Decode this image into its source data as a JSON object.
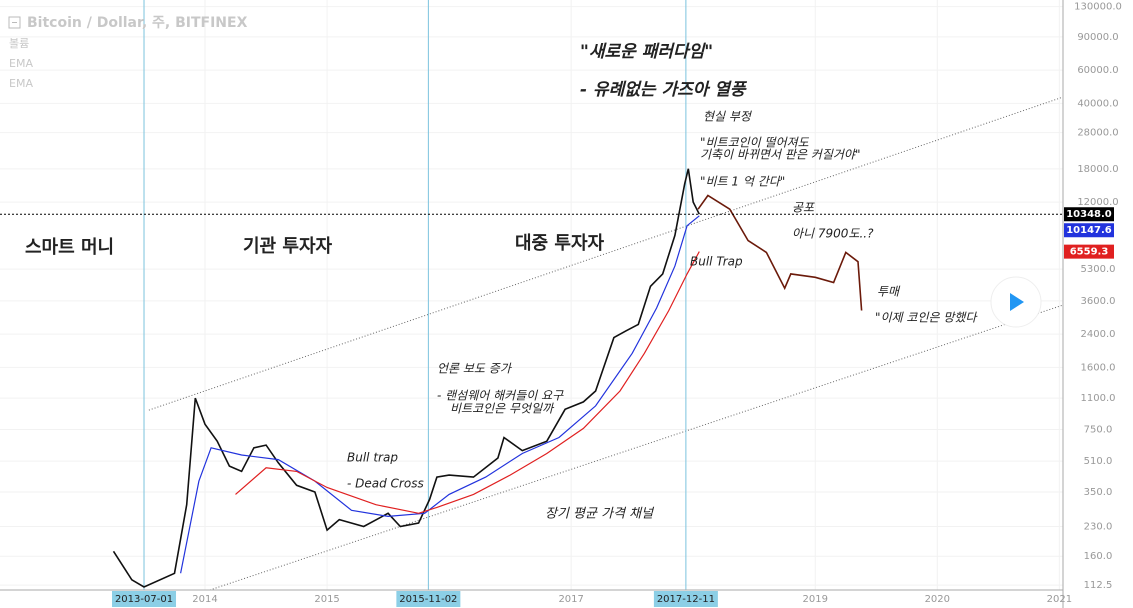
{
  "chart_data": {
    "type": "line",
    "title": "Bitcoin / Dollar, 주, BITFINEX",
    "volume_label": "볼륨",
    "log_scale": true,
    "xlim": [
      2012.32,
      2021.03
    ],
    "ylim": [
      106,
      141000
    ],
    "xticks": [
      2014,
      2015,
      2017,
      2019,
      2020,
      2021
    ],
    "yticks": [
      112.5,
      {
        "value": 160,
        "label": "160.0"
      },
      {
        "value": 230,
        "label": "230.0"
      },
      {
        "value": 350,
        "label": "350.0"
      },
      {
        "value": 510,
        "label": "510.0"
      },
      {
        "value": 750,
        "label": "750.0"
      },
      {
        "value": 1100,
        "label": "1100.0"
      },
      {
        "value": 1600,
        "label": "1600.0"
      },
      {
        "value": 2400,
        "label": "2400.0"
      },
      {
        "value": 3600,
        "label": "3600.0"
      },
      {
        "value": 5300,
        "label": "5300.0"
      },
      {
        "value": 12000,
        "label": "12000.0"
      },
      {
        "value": 18000,
        "label": "18000.0"
      },
      {
        "value": 28000,
        "label": "28000.0"
      },
      {
        "value": 40000,
        "label": "40000.0"
      },
      {
        "value": 60000,
        "label": "60000.0"
      },
      {
        "value": 90000,
        "label": "90000.0"
      },
      {
        "value": 130000,
        "label": "130000.0"
      }
    ],
    "markers": [
      {
        "value": 2013.5,
        "label": "2013-07-01"
      },
      {
        "value": 2015.83,
        "label": "2015-11-02"
      },
      {
        "value": 2017.94,
        "label": "2017-12-11"
      }
    ],
    "series": [
      {
        "color": "#111111",
        "x": [
          2013.25,
          2013.4,
          2013.5,
          2013.75,
          2013.85,
          2013.92,
          2014.0,
          2014.1,
          2014.2,
          2014.3,
          2014.4,
          2014.5,
          2014.6,
          2014.75,
          2014.9,
          2015.0,
          2015.1,
          2015.3,
          2015.5,
          2015.6,
          2015.75,
          2015.84,
          2015.9,
          2016.0,
          2016.2,
          2016.4,
          2016.45,
          2016.6,
          2016.8,
          2016.95,
          2017.1,
          2017.2,
          2017.35,
          2017.45,
          2017.55,
          2017.65,
          2017.75,
          2017.85,
          2017.93,
          2017.96,
          2018.0,
          2018.05
        ],
        "values": [
          170,
          120,
          110,
          130,
          300,
          1100,
          800,
          650,
          480,
          450,
          600,
          620,
          500,
          380,
          350,
          220,
          250,
          230,
          270,
          230,
          240,
          320,
          420,
          430,
          420,
          530,
          680,
          580,
          650,
          960,
          1050,
          1200,
          2300,
          2500,
          2700,
          4300,
          5000,
          8000,
          15000,
          18000,
          12000,
          10348
        ]
      },
      {
        "color": "#6b1a0a",
        "x": [
          2018.04,
          2018.12,
          2018.3,
          2018.45,
          2018.6,
          2018.75,
          2018.8,
          2019.0,
          2019.15,
          2019.25,
          2019.35,
          2019.38
        ],
        "values": [
          11000,
          13000,
          11000,
          7500,
          6500,
          4200,
          5000,
          4800,
          4500,
          6500,
          5800,
          3200
        ]
      },
      {
        "name": "EMA",
        "color": "#2233dd",
        "x": [
          2013.8,
          2013.95,
          2014.05,
          2014.3,
          2014.6,
          2014.9,
          2015.2,
          2015.5,
          2015.8,
          2016.0,
          2016.3,
          2016.6,
          2016.9,
          2017.2,
          2017.5,
          2017.7,
          2017.85,
          2017.95,
          2018.05
        ],
        "values": [
          130,
          400,
          600,
          550,
          520,
          400,
          280,
          260,
          270,
          340,
          420,
          560,
          680,
          1000,
          1900,
          3300,
          5500,
          9000,
          10147.6
        ]
      },
      {
        "name": "EMA",
        "color": "#e02020",
        "x": [
          2014.25,
          2014.5,
          2014.75,
          2015.0,
          2015.4,
          2015.75,
          2015.9,
          2016.2,
          2016.5,
          2016.8,
          2017.1,
          2017.4,
          2017.6,
          2017.8,
          2017.95,
          2018.05
        ],
        "values": [
          340,
          470,
          450,
          370,
          300,
          270,
          290,
          340,
          430,
          560,
          760,
          1200,
          1900,
          3200,
          5000,
          6559.3
        ]
      }
    ],
    "price_labels": [
      {
        "value": 10348,
        "label": "10348.0",
        "color": "#000000"
      },
      {
        "value": 10147.6,
        "label": "10147.6",
        "color": "#2233dd"
      },
      {
        "value": 6559.3,
        "label": "6559.3",
        "color": "#e02020"
      }
    ],
    "channel": [
      {
        "x": [
          2013.54,
          2021.03
        ],
        "values": [
          950,
          43200
        ]
      },
      {
        "x": [
          2014.04,
          2021.03
        ],
        "values": [
          106,
          3420
        ]
      }
    ],
    "annotations": [
      "스마트 머니",
      "기관 투자자",
      "대중 투자자",
      "\"새로운 패러다임\"",
      "- 유례없는 가즈아 열풍",
      "현실 부정",
      "\"비트코인이 떨어져도",
      "기축이 바뀌면서 판은 커질거야\"",
      "\"비트 1 억 간다\"",
      "공포",
      "아니 7900도..?",
      "Bull Trap",
      "투매",
      "\"이제 코인은 망했다",
      "Bull trap",
      "- Dead Cross",
      "언론 보도 증가",
      "- 랜섬웨어 해커들이 요구",
      "비트코인은 무엇일까",
      "장기 평균 가격 채널"
    ]
  }
}
